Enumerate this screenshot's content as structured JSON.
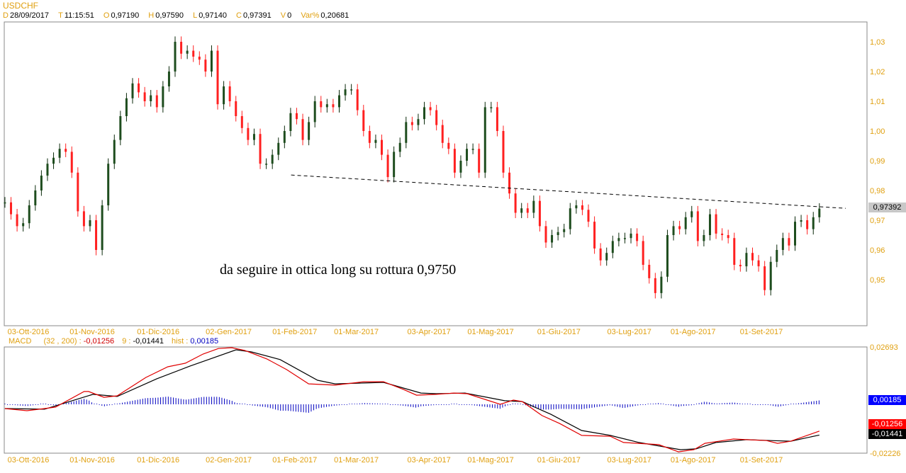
{
  "header": {
    "symbol": "USDCHF",
    "date_key": "D",
    "date": "28/09/2017",
    "time_key": "T",
    "time": "11:15:51",
    "open_key": "O",
    "open": "0,97190",
    "high_key": "H",
    "high": "0,97590",
    "low_key": "L",
    "low": "0,97140",
    "close_key": "C",
    "close": "0,97391",
    "volume_key": "V",
    "volume": "0",
    "var_key": "Var%",
    "var": "0,20681"
  },
  "annotation": "da seguire in ottica long su rottura 0,9750",
  "price_tag": "0,97392",
  "macd_legend": {
    "name": "MACD",
    "params": "(32 , 200) :",
    "macd": "-0,01256",
    "signal_key": "9 :",
    "signal": "-0,01441",
    "hist_key": "hist :",
    "hist": "0,00185"
  },
  "macd_tags": {
    "hist": "0,00185",
    "macd": "-0,01256",
    "signal": "-0,01441"
  },
  "colors": {
    "axis_text": "#e0a010",
    "up": "#1e4d1e",
    "down": "#ff2020",
    "macd": "#e00000",
    "signal": "#000000",
    "hist": "#0000c0",
    "price_tag_bg": "#c8c8c8"
  },
  "chart_data": [
    {
      "type": "candlestick",
      "title": "USDCHF",
      "first_date": "2016-09-23",
      "last_date": "2017-09-28",
      "closes": [
        0.976,
        0.972,
        0.968,
        0.969,
        0.975,
        0.98,
        0.985,
        0.989,
        0.991,
        0.994,
        0.993,
        0.986,
        0.973,
        0.968,
        0.97,
        0.96,
        0.975,
        0.989,
        0.997,
        1.005,
        1.011,
        1.016,
        1.013,
        1.01,
        1.012,
        1.008,
        1.015,
        1.02,
        1.03,
        1.026,
        1.027,
        1.025,
        1.024,
        1.02,
        1.027,
        1.009,
        1.015,
        1.01,
        1.005,
        1.001,
        0.997,
        0.999,
        0.989,
        0.989,
        0.992,
        0.996,
        1.0,
        1.006,
        1.004,
        0.997,
        1.003,
        1.01,
        1.008,
        1.009,
        1.008,
        1.012,
        1.014,
        1.014,
        1.007,
        1.0,
        0.996,
        0.997,
        0.992,
        0.9845,
        0.993,
        0.996,
        1.003,
        1.002,
        1.004,
        1.008,
        1.007,
        1.002,
        0.996,
        0.994,
        0.986,
        0.99,
        0.994,
        0.994,
        0.986,
        1.008,
        1.008,
        1.0,
        0.986,
        0.979,
        0.9725,
        0.974,
        0.9725,
        0.9765,
        0.968,
        0.9625,
        0.965,
        0.966,
        0.967,
        0.974,
        0.975,
        0.9735,
        0.9695,
        0.9605,
        0.9565,
        0.959,
        0.963,
        0.964,
        0.964,
        0.9655,
        0.963,
        0.955,
        0.9505,
        0.9455,
        0.951,
        0.965,
        0.968,
        0.967,
        0.971,
        0.973,
        0.963,
        0.965,
        0.972,
        0.9655,
        0.965,
        0.964,
        0.955,
        0.9545,
        0.959,
        0.9565,
        0.9545,
        0.9465,
        0.956,
        0.96,
        0.964,
        0.9615,
        0.9695,
        0.97,
        0.967,
        0.971,
        0.97391
      ],
      "y_ticks": [
        {
          "v": 1.03,
          "label": "1,03"
        },
        {
          "v": 1.02,
          "label": "1,02"
        },
        {
          "v": 1.01,
          "label": "1,01"
        },
        {
          "v": 1.0,
          "label": "1,00"
        },
        {
          "v": 0.99,
          "label": "0,99"
        },
        {
          "v": 0.98,
          "label": "0,98"
        },
        {
          "v": 0.97,
          "label": "0,97"
        },
        {
          "v": 0.96,
          "label": "0,96"
        },
        {
          "v": 0.95,
          "label": "0,95"
        }
      ],
      "x_ticks": [
        {
          "d": "2016-10-03",
          "label": "03-Ott-2016"
        },
        {
          "d": "2016-11-01",
          "label": "01-Nov-2016"
        },
        {
          "d": "2016-12-01",
          "label": "01-Dic-2016"
        },
        {
          "d": "2017-01-02",
          "label": "02-Gen-2017"
        },
        {
          "d": "2017-02-01",
          "label": "01-Feb-2017"
        },
        {
          "d": "2017-03-01",
          "label": "01-Mar-2017"
        },
        {
          "d": "2017-04-03",
          "label": "03-Apr-2017"
        },
        {
          "d": "2017-05-01",
          "label": "01-Mag-2017"
        },
        {
          "d": "2017-06-01",
          "label": "01-Giu-2017"
        },
        {
          "d": "2017-07-03",
          "label": "03-Lug-2017"
        },
        {
          "d": "2017-08-01",
          "label": "01-Ago-2017"
        },
        {
          "d": "2017-09-01",
          "label": "01-Set-2017"
        }
      ],
      "trendline": {
        "from": {
          "d": "2017-01-31",
          "price": 0.9852
        },
        "to": {
          "d": "2017-10-10",
          "price": 0.974
        },
        "style": "dashed"
      },
      "last_price": 0.97392
    },
    {
      "type": "line",
      "title": "MACD (32 , 200)",
      "ylim": [
        -0.02226,
        0.02693
      ],
      "y_labels": {
        "max": "0,02693",
        "min": "-0,02226"
      },
      "series": [
        {
          "name": "MACD",
          "points": [
            [
              "2016-09-23",
              -0.002
            ],
            [
              "2016-10-03",
              -0.003
            ],
            [
              "2016-10-11",
              -0.002
            ],
            [
              "2016-10-16",
              -0.0013
            ],
            [
              "2016-10-29",
              0.006
            ],
            [
              "2016-10-31",
              0.006
            ],
            [
              "2016-11-07",
              0.0033
            ],
            [
              "2016-11-13",
              0.004
            ],
            [
              "2016-11-26",
              0.0126
            ],
            [
              "2016-12-06",
              0.0176
            ],
            [
              "2016-12-14",
              0.0193
            ],
            [
              "2016-12-22",
              0.0236
            ],
            [
              "2016-12-29",
              0.0262
            ],
            [
              "2017-01-04",
              0.0266
            ],
            [
              "2017-01-10",
              0.0253
            ],
            [
              "2017-01-20",
              0.0213
            ],
            [
              "2017-01-29",
              0.0163
            ],
            [
              "2017-02-08",
              0.0096
            ],
            [
              "2017-02-20",
              0.009
            ],
            [
              "2017-03-05",
              0.0106
            ],
            [
              "2017-03-14",
              0.0106
            ],
            [
              "2017-03-23",
              0.007
            ],
            [
              "2017-03-29",
              0.0043
            ],
            [
              "2017-04-07",
              0.0047
            ],
            [
              "2017-04-15",
              0.0053
            ],
            [
              "2017-04-21",
              0.005
            ],
            [
              "2017-05-06",
              0.0
            ],
            [
              "2017-05-12",
              0.002
            ],
            [
              "2017-05-16",
              0.0013
            ],
            [
              "2017-05-25",
              -0.0053
            ],
            [
              "2017-06-02",
              -0.009
            ],
            [
              "2017-06-12",
              -0.0146
            ],
            [
              "2017-06-25",
              -0.015
            ],
            [
              "2017-07-01",
              -0.0179
            ],
            [
              "2017-07-17",
              -0.0189
            ],
            [
              "2017-07-26",
              -0.0223
            ],
            [
              "2017-08-02",
              -0.0213
            ],
            [
              "2017-08-07",
              -0.0183
            ],
            [
              "2017-08-20",
              -0.0163
            ],
            [
              "2017-09-04",
              -0.017
            ],
            [
              "2017-09-09",
              -0.0183
            ],
            [
              "2017-09-15",
              -0.0173
            ],
            [
              "2017-09-28",
              -0.01256
            ]
          ]
        },
        {
          "name": "9",
          "points": [
            [
              "2016-09-23",
              -0.002
            ],
            [
              "2016-10-11",
              -0.0023
            ],
            [
              "2016-11-02",
              0.0047
            ],
            [
              "2016-11-13",
              0.0037
            ],
            [
              "2016-12-01",
              0.012
            ],
            [
              "2016-12-16",
              0.0179
            ],
            [
              "2017-01-06",
              0.0256
            ],
            [
              "2017-01-13",
              0.0246
            ],
            [
              "2017-01-26",
              0.021
            ],
            [
              "2017-02-12",
              0.0113
            ],
            [
              "2017-02-20",
              0.0096
            ],
            [
              "2017-03-05",
              0.01
            ],
            [
              "2017-03-14",
              0.0103
            ],
            [
              "2017-03-31",
              0.0053
            ],
            [
              "2017-04-07",
              0.005
            ],
            [
              "2017-04-20",
              0.0053
            ],
            [
              "2017-05-08",
              0.0017
            ],
            [
              "2017-05-16",
              0.0013
            ],
            [
              "2017-05-29",
              -0.0047
            ],
            [
              "2017-06-12",
              -0.0123
            ],
            [
              "2017-06-25",
              -0.0146
            ],
            [
              "2017-07-08",
              -0.0179
            ],
            [
              "2017-07-27",
              -0.0213
            ],
            [
              "2017-08-03",
              -0.0209
            ],
            [
              "2017-08-12",
              -0.0179
            ],
            [
              "2017-08-26",
              -0.0166
            ],
            [
              "2017-09-06",
              -0.017
            ],
            [
              "2017-09-15",
              -0.0173
            ],
            [
              "2017-09-28",
              -0.01441
            ]
          ]
        }
      ],
      "hist": "MACD - 9"
    }
  ]
}
